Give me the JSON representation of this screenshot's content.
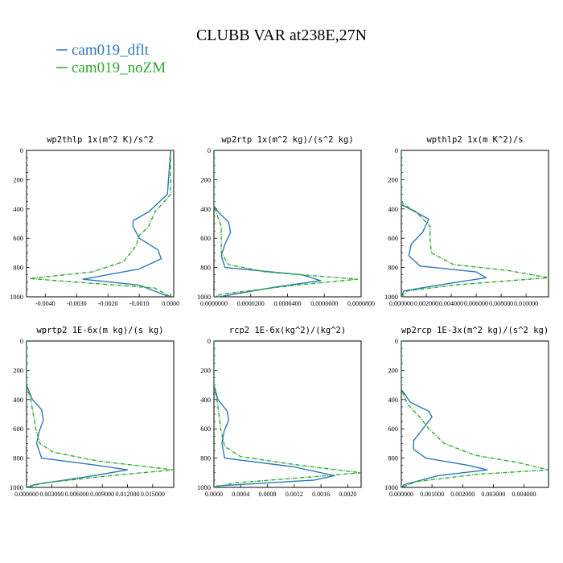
{
  "figure_title": "CLUBB VAR at238E,27N",
  "legend": [
    {
      "label": "cam019_dflt",
      "color": "#2e78b4"
    },
    {
      "label": "cam019_noZM",
      "color": "#2ea82e"
    }
  ],
  "chart_data": [
    {
      "type": "line",
      "title": "wp2thlp   1x(m^2 K)/s^2",
      "xlim": [
        -0.0046,
        0.0001
      ],
      "xticks": [
        -0.004,
        -0.003,
        -0.002,
        -0.001,
        0
      ],
      "xtick_labels": [
        "-0.0040",
        "-0.0030",
        "-0.0020",
        "-0.0010",
        "0.0000"
      ],
      "ylim": [
        0,
        1000
      ],
      "yticks": [
        0,
        200,
        400,
        600,
        800,
        1000
      ],
      "ytick_labels": [
        "0",
        "200",
        "400",
        "600",
        "800",
        "1000"
      ],
      "series": [
        {
          "name": "cam019_dflt",
          "points": [
            [
              0,
              0
            ],
            [
              -0.0001,
              300
            ],
            [
              -0.0004,
              360
            ],
            [
              -0.0007,
              420
            ],
            [
              -0.0012,
              480
            ],
            [
              -0.0012,
              520
            ],
            [
              -0.001,
              600
            ],
            [
              -0.0004,
              680
            ],
            [
              -0.0003,
              740
            ],
            [
              -0.001,
              810
            ],
            [
              -0.0028,
              880
            ],
            [
              -0.001,
              920
            ],
            [
              -5e-05,
              1000
            ]
          ]
        },
        {
          "name": "cam019_noZM",
          "points": [
            [
              0,
              0
            ],
            [
              0,
              300
            ],
            [
              -0.0002,
              350
            ],
            [
              -0.0005,
              420
            ],
            [
              -0.0007,
              520
            ],
            [
              -0.001,
              580
            ],
            [
              -0.0011,
              650
            ],
            [
              -0.0015,
              760
            ],
            [
              -0.0025,
              830
            ],
            [
              -0.0045,
              875
            ],
            [
              -0.003,
              900
            ],
            [
              -0.0005,
              940
            ],
            [
              0,
              1000
            ]
          ]
        }
      ]
    },
    {
      "type": "line",
      "title": "wp2rtp   1x(m^2 kg)/(s^2 kg)",
      "xlim": [
        0,
        8e-05
      ],
      "xticks": [
        0,
        2e-05,
        4e-05,
        6e-05,
        8e-05
      ],
      "xtick_labels": [
        "0.0000000",
        "0.0000200",
        "0.0000400",
        "0.0000600",
        "0.0000800"
      ],
      "ylim": [
        0,
        1000
      ],
      "yticks": [
        0,
        200,
        400,
        600,
        800,
        1000
      ],
      "ytick_labels": [
        "0",
        "200",
        "400",
        "600",
        "800",
        "1000"
      ],
      "series": [
        {
          "name": "cam019_dflt",
          "points": [
            [
              0,
              0
            ],
            [
              0,
              380
            ],
            [
              3e-06,
              430
            ],
            [
              8e-06,
              490
            ],
            [
              9e-06,
              560
            ],
            [
              6e-06,
              640
            ],
            [
              4e-06,
              720
            ],
            [
              6e-06,
              800
            ],
            [
              4.8e-05,
              850
            ],
            [
              5.8e-05,
              890
            ],
            [
              3.5e-05,
              930
            ],
            [
              3e-06,
              1000
            ]
          ]
        },
        {
          "name": "cam019_noZM",
          "points": [
            [
              0,
              0
            ],
            [
              0,
              380
            ],
            [
              2e-06,
              450
            ],
            [
              4e-06,
              520
            ],
            [
              4e-06,
              600
            ],
            [
              4e-06,
              700
            ],
            [
              8e-06,
              780
            ],
            [
              2.8e-05,
              830
            ],
            [
              7.8e-05,
              880
            ],
            [
              4.5e-05,
              920
            ],
            [
              5e-06,
              980
            ],
            [
              0,
              1000
            ]
          ]
        }
      ]
    },
    {
      "type": "line",
      "title": "wpthlp2   1x(m K^2)/s",
      "xlim": [
        0,
        0.0118
      ],
      "xticks": [
        0,
        0.002,
        0.004,
        0.006,
        0.008,
        0.01
      ],
      "xtick_labels": [
        "0.000000",
        "0.002000",
        "0.004000",
        "0.006000",
        "0.008000",
        "0.010000"
      ],
      "ylim": [
        0,
        1000
      ],
      "yticks": [
        0,
        200,
        400,
        600,
        800,
        1000
      ],
      "ytick_labels": [
        "0",
        "200",
        "400",
        "600",
        "800",
        "1000"
      ],
      "series": [
        {
          "name": "cam019_dflt",
          "points": [
            [
              0,
              0
            ],
            [
              0,
              370
            ],
            [
              0.0009,
              410
            ],
            [
              0.0022,
              470
            ],
            [
              0.0017,
              560
            ],
            [
              0.0008,
              640
            ],
            [
              0.0006,
              720
            ],
            [
              0.0015,
              790
            ],
            [
              0.006,
              830
            ],
            [
              0.0068,
              870
            ],
            [
              0.003,
              920
            ],
            [
              0.0002,
              960
            ],
            [
              0,
              1000
            ]
          ]
        },
        {
          "name": "cam019_noZM",
          "points": [
            [
              0,
              0
            ],
            [
              0,
              350
            ],
            [
              0.0004,
              380
            ],
            [
              0.0012,
              420
            ],
            [
              0.0023,
              520
            ],
            [
              0.0023,
              600
            ],
            [
              0.0024,
              700
            ],
            [
              0.0042,
              780
            ],
            [
              0.0085,
              820
            ],
            [
              0.0118,
              870
            ],
            [
              0.0042,
              920
            ],
            [
              0.0005,
              960
            ],
            [
              0,
              1000
            ]
          ]
        }
      ]
    },
    {
      "type": "line",
      "title": "wprtp2   1E-6x(m kg)/(s kg)",
      "xlim": [
        0,
        0.0175
      ],
      "xticks": [
        0,
        0.003,
        0.006,
        0.009,
        0.012,
        0.015
      ],
      "xtick_labels": [
        "0.000000",
        "0.003000",
        "0.006000",
        "0.009000",
        "0.012000",
        "0.015000"
      ],
      "ylim": [
        0,
        1000
      ],
      "yticks": [
        0,
        200,
        400,
        600,
        800,
        1000
      ],
      "ytick_labels": [
        "0",
        "200",
        "400",
        "600",
        "800",
        "1000"
      ],
      "series": [
        {
          "name": "cam019_dflt",
          "points": [
            [
              0,
              0
            ],
            [
              0,
              300
            ],
            [
              0.0007,
              400
            ],
            [
              0.0018,
              470
            ],
            [
              0.002,
              540
            ],
            [
              0.0015,
              620
            ],
            [
              0.0012,
              700
            ],
            [
              0.0018,
              800
            ],
            [
              0.0085,
              850
            ],
            [
              0.012,
              880
            ],
            [
              0.008,
              920
            ],
            [
              0.001,
              980
            ],
            [
              0,
              1000
            ]
          ]
        },
        {
          "name": "cam019_noZM",
          "points": [
            [
              0,
              0
            ],
            [
              0,
              300
            ],
            [
              0.0005,
              400
            ],
            [
              0.0008,
              500
            ],
            [
              0.0011,
              600
            ],
            [
              0.0016,
              700
            ],
            [
              0.0032,
              760
            ],
            [
              0.0085,
              820
            ],
            [
              0.0175,
              880
            ],
            [
              0.01,
              920
            ],
            [
              0.002,
              970
            ],
            [
              0,
              1000
            ]
          ]
        }
      ]
    },
    {
      "type": "line",
      "title": "rcp2   1E-6x(kg^2)/(kg^2)",
      "xlim": [
        0,
        0.0022
      ],
      "xticks": [
        0,
        0.0004,
        0.0008,
        0.0012,
        0.0016,
        0.002
      ],
      "xtick_labels": [
        "0.0000",
        "0.0004",
        "0.0008",
        "0.0012",
        "0.0016",
        "0.0020"
      ],
      "ylim": [
        0,
        1000
      ],
      "yticks": [
        0,
        200,
        400,
        600,
        800,
        1000
      ],
      "ytick_labels": [
        "0",
        "200",
        "400",
        "600",
        "800",
        "1000"
      ],
      "series": [
        {
          "name": "cam019_dflt",
          "points": [
            [
              0,
              0
            ],
            [
              0,
              300
            ],
            [
              6e-05,
              400
            ],
            [
              0.0002,
              480
            ],
            [
              0.00022,
              540
            ],
            [
              0.00015,
              620
            ],
            [
              0.00012,
              700
            ],
            [
              0.00016,
              800
            ],
            [
              0.0012,
              860
            ],
            [
              0.0018,
              920
            ],
            [
              0.0015,
              950
            ],
            [
              5e-05,
              990
            ],
            [
              0,
              1000
            ]
          ]
        },
        {
          "name": "cam019_noZM",
          "points": [
            [
              0,
              0
            ],
            [
              0,
              300
            ],
            [
              5e-05,
              420
            ],
            [
              8e-05,
              520
            ],
            [
              0.0001,
              600
            ],
            [
              0.00016,
              720
            ],
            [
              0.0004,
              790
            ],
            [
              0.0013,
              850
            ],
            [
              0.0022,
              900
            ],
            [
              0.0014,
              930
            ],
            [
              0.0003,
              970
            ],
            [
              0,
              1000
            ]
          ]
        }
      ]
    },
    {
      "type": "line",
      "title": "wp2rcp   1E-3x(m^2 kg)/(s^2 kg)",
      "xlim": [
        0,
        0.0048
      ],
      "xticks": [
        0,
        0.001,
        0.002,
        0.003,
        0.004
      ],
      "xtick_labels": [
        "0.000000",
        "0.001000",
        "0.002000",
        "0.003000",
        "0.004000"
      ],
      "ylim": [
        0,
        1000
      ],
      "yticks": [
        0,
        200,
        400,
        600,
        800,
        1000
      ],
      "ytick_labels": [
        "0",
        "200",
        "400",
        "600",
        "800",
        "1000"
      ],
      "series": [
        {
          "name": "cam019_dflt",
          "points": [
            [
              0,
              0
            ],
            [
              0,
              330
            ],
            [
              0.0003,
              420
            ],
            [
              0.0009,
              480
            ],
            [
              0.001,
              520
            ],
            [
              0.0007,
              600
            ],
            [
              0.0004,
              680
            ],
            [
              0.0004,
              740
            ],
            [
              0.0008,
              800
            ],
            [
              0.0022,
              850
            ],
            [
              0.0028,
              880
            ],
            [
              0.0012,
              920
            ],
            [
              0.0001,
              980
            ],
            [
              0,
              1000
            ]
          ]
        },
        {
          "name": "cam019_noZM",
          "points": [
            [
              0,
              0
            ],
            [
              0,
              330
            ],
            [
              0.0002,
              430
            ],
            [
              0.0006,
              520
            ],
            [
              0.0009,
              600
            ],
            [
              0.0014,
              700
            ],
            [
              0.0024,
              780
            ],
            [
              0.0038,
              830
            ],
            [
              0.0048,
              880
            ],
            [
              0.0025,
              910
            ],
            [
              0.0005,
              960
            ],
            [
              0,
              1000
            ]
          ]
        }
      ]
    }
  ]
}
